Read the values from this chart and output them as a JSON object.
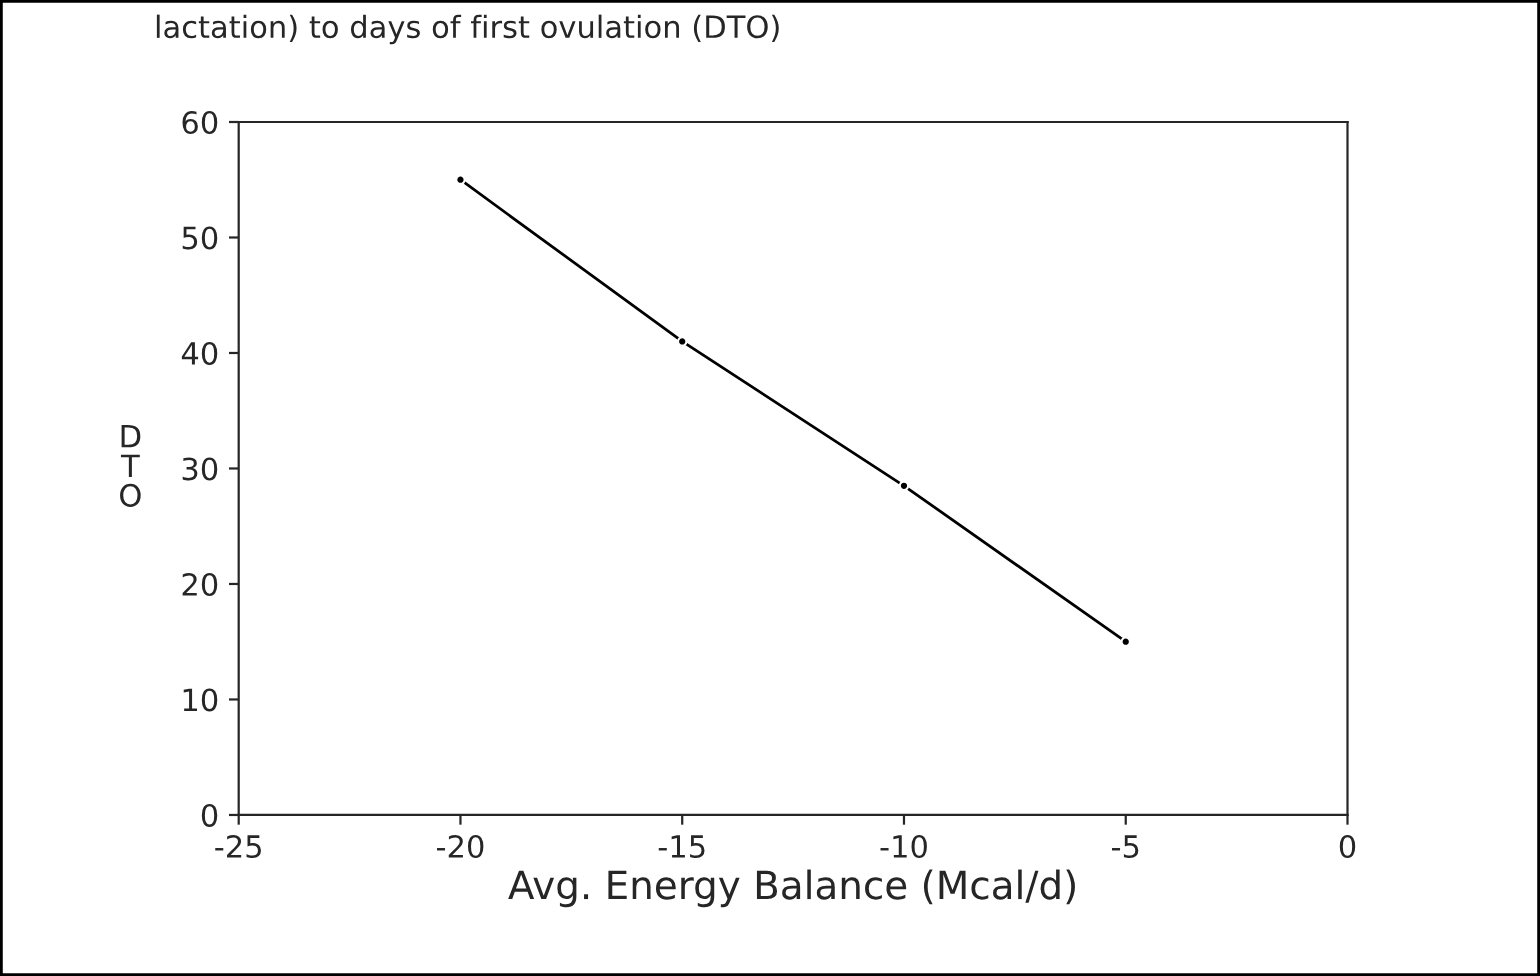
{
  "chart_data": {
    "type": "line",
    "xlabel": "Avg. Energy Balance (Mcal/d)",
    "ylabel": "D\nT\nO",
    "annotations": [
      "lactation) to days of first ovulation (DTO)"
    ],
    "x": [
      -20,
      -15,
      -10,
      -5
    ],
    "series": [
      {
        "color": "#000000",
        "values": [
          55,
          41,
          28.5,
          15
        ]
      }
    ],
    "xlim": [
      -25,
      0
    ],
    "xticks": [
      -25,
      -20,
      -15,
      -10,
      -5,
      0
    ],
    "ylim": [
      0,
      60
    ],
    "yticks": [
      0,
      10,
      20,
      30,
      40,
      50,
      60
    ],
    "marker": "circle",
    "line_style": "solid",
    "grid": false,
    "legend": false
  }
}
